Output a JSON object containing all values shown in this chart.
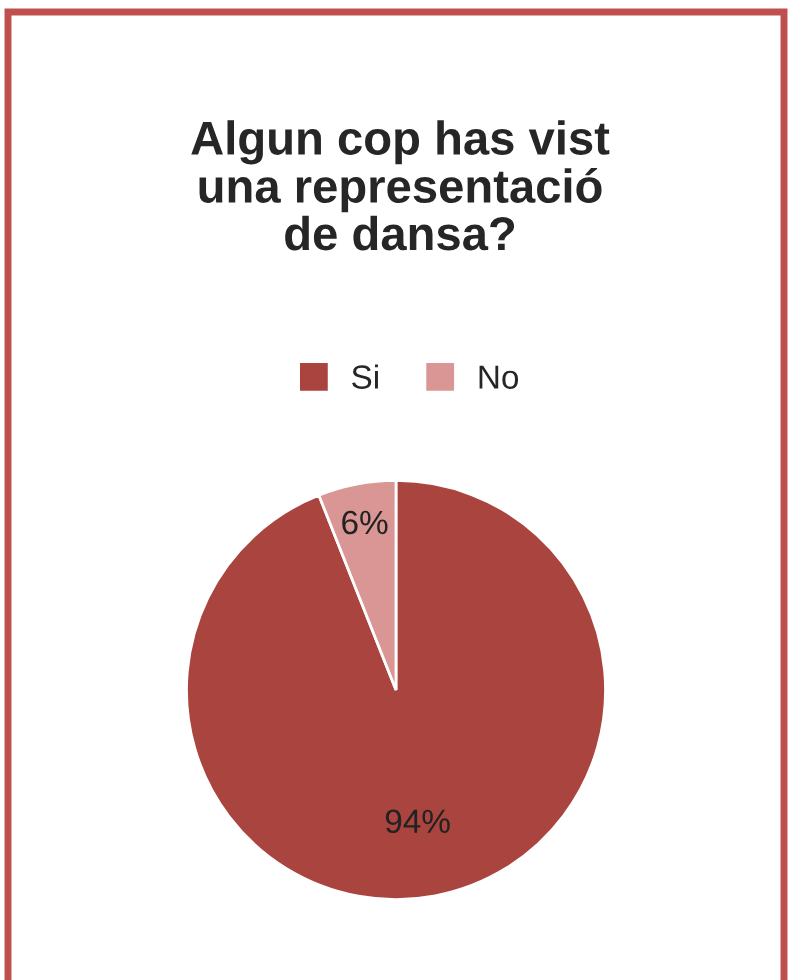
{
  "chart_data": {
    "type": "pie",
    "title": "Algun cop has vist\nuna representació\nde dansa?",
    "categories": [
      "Si",
      "No"
    ],
    "values": [
      94,
      6
    ],
    "colors": [
      "#a9443f",
      "#d99694"
    ],
    "value_labels": [
      "94%",
      "6%"
    ],
    "legend": "top"
  }
}
